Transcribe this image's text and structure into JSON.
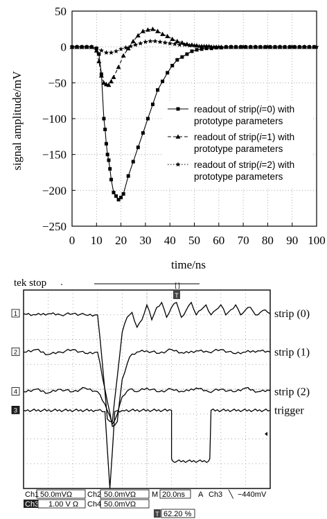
{
  "chart_data": [
    {
      "type": "line",
      "title": "",
      "xlabel": "time/ns",
      "ylabel": "signal amplitude/mV",
      "xlim": [
        0,
        100
      ],
      "ylim": [
        -250,
        50
      ],
      "x_ticks": [
        "0",
        "10",
        "20",
        "30",
        "40",
        "50",
        "60",
        "70",
        "80",
        "90",
        "100"
      ],
      "y_ticks": [
        "50",
        "0",
        "−50",
        "−100",
        "−150",
        "−200",
        "−250"
      ],
      "grid": true,
      "legend_position": "right-center",
      "series": [
        {
          "name": "readout of strip(i=0) with prototype parameters",
          "legend_lines": [
            "readout of strip(",
            "i",
            "=0) with",
            "prototype parameters"
          ],
          "marker": "square",
          "line": "solid",
          "x": [
            0,
            2,
            4,
            6,
            8,
            10,
            11,
            12,
            13,
            13.5,
            14,
            14.5,
            15,
            15.5,
            16,
            17,
            18,
            19,
            20,
            21,
            23,
            25,
            27,
            29,
            31,
            33,
            35,
            37,
            39,
            41,
            43,
            45,
            47,
            49,
            51,
            53,
            55,
            57,
            59,
            61,
            63,
            65,
            67,
            69,
            71,
            73,
            75,
            77,
            79,
            81,
            83,
            85,
            87,
            89,
            91,
            93,
            95,
            97,
            99
          ],
          "y": [
            0,
            0,
            0,
            0,
            0,
            -2,
            -10,
            -38,
            -100,
            -115,
            -135,
            -150,
            -158,
            -170,
            -185,
            -203,
            -208,
            -213,
            -210,
            -205,
            -180,
            -160,
            -140,
            -120,
            -100,
            -80,
            -60,
            -48,
            -36,
            -26,
            -18,
            -14,
            -10,
            -6,
            -4,
            -3,
            -2,
            -2,
            -1,
            -1,
            0,
            0,
            0,
            0,
            0,
            0,
            0,
            0,
            0,
            0,
            0,
            0,
            0,
            0,
            0,
            0,
            0,
            0,
            0
          ]
        },
        {
          "name": "readout of strip(i=1) with prototype parameters",
          "legend_lines": [
            "readout of strip(",
            "i",
            "=1) with",
            "prototype parameters"
          ],
          "marker": "triangle",
          "line": "dashed",
          "x": [
            0,
            2,
            4,
            6,
            8,
            10,
            11,
            12,
            13,
            14,
            15,
            16,
            17,
            19,
            21,
            23,
            25,
            27,
            29,
            31,
            33,
            35,
            37,
            39,
            41,
            43,
            45,
            47,
            49,
            51,
            53,
            55,
            57,
            59,
            61,
            63,
            65,
            67,
            69,
            71,
            73,
            75,
            77,
            79,
            81,
            83,
            85,
            87,
            89,
            91,
            93,
            95,
            97,
            99
          ],
          "y": [
            0,
            0,
            0,
            0,
            0,
            -5,
            -20,
            -40,
            -50,
            -52,
            -53,
            -48,
            -42,
            -28,
            -12,
            -2,
            8,
            16,
            22,
            24,
            25,
            22,
            18,
            15,
            11,
            8,
            6,
            4,
            3,
            2,
            1,
            1,
            0,
            0,
            0,
            0,
            0,
            0,
            0,
            0,
            0,
            0,
            0,
            0,
            0,
            0,
            0,
            0,
            0,
            0,
            0,
            0,
            0,
            0
          ]
        },
        {
          "name": "readout of strip(i=2) with prototype parameters",
          "legend_lines": [
            "readout of strip(",
            "i",
            "=2) with",
            "prototype parameters"
          ],
          "marker": "star",
          "line": "dotted",
          "x": [
            0,
            2,
            4,
            6,
            8,
            10,
            12,
            14,
            16,
            18,
            20,
            22,
            24,
            26,
            28,
            30,
            32,
            34,
            36,
            38,
            40,
            42,
            44,
            46,
            48,
            50,
            52,
            54,
            56,
            58,
            60,
            65,
            70,
            75,
            80,
            85,
            90,
            95,
            100
          ],
          "y": [
            0,
            0,
            0,
            0,
            0,
            -2,
            -5,
            -8,
            -8,
            -6,
            -3,
            -1,
            1,
            3,
            5,
            7,
            8,
            8,
            7,
            6,
            5,
            4,
            3,
            3,
            2,
            2,
            1,
            1,
            1,
            0,
            0,
            0,
            0,
            0,
            0,
            0,
            0,
            0,
            0
          ]
        }
      ]
    },
    {
      "type": "line",
      "title": "tek stop",
      "grid": true,
      "xlim": [
        0,
        10
      ],
      "ylim": [
        -4,
        4
      ],
      "series": [
        {
          "name": "strip (0)",
          "marker_label": "1",
          "x": [
            0,
            0.5,
            1,
            1.5,
            2,
            2.5,
            3,
            3.2,
            3.4,
            3.6,
            3.8,
            4,
            4.2,
            4.4,
            4.6,
            4.8,
            5,
            5.2,
            5.4,
            5.6,
            5.8,
            6,
            6.2,
            6.4,
            6.6,
            6.8,
            7,
            7.2,
            7.4,
            7.6,
            7.8,
            8,
            8.2,
            8.4,
            8.6,
            8.8,
            9,
            9.2,
            9.4,
            9.6,
            9.8,
            10
          ],
          "y": [
            3.05,
            3.0,
            3.05,
            3.0,
            3.05,
            3.0,
            3.0,
            1.0,
            -1.2,
            -1.3,
            0.5,
            2.3,
            2.9,
            3.1,
            2.5,
            2.8,
            3.4,
            2.8,
            3.3,
            3.5,
            2.9,
            3.3,
            3.5,
            2.9,
            3.2,
            3.5,
            3.0,
            3.2,
            3.4,
            3.0,
            3.2,
            3.4,
            3.0,
            3.2,
            3.4,
            3.0,
            3.2,
            3.3,
            3.0,
            3.1,
            3.2,
            3.05
          ]
        },
        {
          "name": "strip (1)",
          "marker_label": "2",
          "x": [
            0,
            0.5,
            1,
            1.5,
            2,
            2.5,
            3,
            3.3,
            3.6,
            3.8,
            4,
            4.3,
            4.6,
            5,
            5.5,
            6,
            6.5,
            7,
            7.5,
            8,
            8.5,
            9,
            9.5,
            10
          ],
          "y": [
            1.5,
            1.6,
            1.4,
            1.5,
            1.6,
            1.45,
            1.5,
            0,
            -1.5,
            -1.3,
            0.4,
            1.3,
            1.5,
            1.55,
            1.45,
            1.6,
            1.45,
            1.55,
            1.5,
            1.6,
            1.45,
            1.5,
            1.55,
            1.5
          ]
        },
        {
          "name": "strip (2)",
          "marker_label": "4",
          "x": [
            0,
            0.5,
            1,
            1.5,
            2,
            2.5,
            3,
            3.3,
            3.6,
            3.8,
            4,
            4.3,
            4.6,
            5,
            5.5,
            6,
            6.5,
            7,
            7.5,
            8,
            8.5,
            9,
            9.5,
            10
          ],
          "y": [
            -0.1,
            0,
            -0.15,
            0,
            -0.1,
            0.05,
            -0.1,
            -0.6,
            -1.4,
            -1.0,
            -0.3,
            0,
            -0.1,
            0.05,
            -0.1,
            0,
            -0.1,
            0.05,
            -0.1,
            0,
            -0.1,
            0.05,
            -0.1,
            -0.05
          ]
        },
        {
          "name": "trigger",
          "marker_label": "3",
          "x": [
            0,
            3,
            3.3,
            3.5,
            3.7,
            4,
            6,
            6.0,
            6.05,
            7.5,
            7.55,
            7.6,
            10
          ],
          "y": [
            -0.85,
            -0.85,
            -0.9,
            -4.0,
            -0.9,
            -0.85,
            -0.85,
            -2.8,
            -2.9,
            -2.9,
            -2.8,
            -0.85,
            -0.85
          ]
        }
      ],
      "status_bar": {
        "ch1": "Ch1",
        "ch1_val": "50.0mVΩ",
        "ch2": "Ch2",
        "ch2_val": "50.0mVΩ",
        "ch3": "Ch3",
        "ch3_val": "1.00 V Ω",
        "ch4": "Ch4",
        "ch4_val": "50.0mVΩ",
        "m": "M",
        "m_val": "20.0ns",
        "a": "A",
        "trig_ch": "Ch3",
        "trig_slope": "╲",
        "trig_val": "−440mV",
        "bottom_icon": "T",
        "bottom_val": "62.20 %"
      },
      "top_marker": "[ ]",
      "trigger_marker": "T"
    }
  ]
}
